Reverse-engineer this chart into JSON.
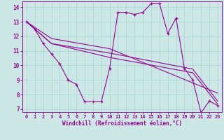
{
  "xlabel": "Windchill (Refroidissement éolien,°C)",
  "background_color": "#cce8e4",
  "line_color": "#990099",
  "grid_color": "#aad8d4",
  "xlim": [
    -0.5,
    23.5
  ],
  "ylim": [
    6.8,
    14.4
  ],
  "yticks": [
    7,
    8,
    9,
    10,
    11,
    12,
    13,
    14
  ],
  "xticks": [
    0,
    1,
    2,
    3,
    4,
    5,
    6,
    7,
    8,
    9,
    10,
    11,
    12,
    13,
    14,
    15,
    16,
    17,
    18,
    19,
    20,
    21,
    22,
    23
  ],
  "series1": [
    [
      0,
      13.0
    ],
    [
      1,
      12.5
    ],
    [
      2,
      11.5
    ],
    [
      3,
      10.8
    ],
    [
      4,
      10.1
    ],
    [
      5,
      9.0
    ],
    [
      6,
      8.7
    ],
    [
      7,
      7.5
    ],
    [
      8,
      7.5
    ],
    [
      9,
      7.5
    ],
    [
      10,
      9.8
    ],
    [
      11,
      13.65
    ],
    [
      12,
      13.65
    ],
    [
      13,
      13.5
    ],
    [
      14,
      13.65
    ],
    [
      15,
      14.25
    ],
    [
      16,
      14.25
    ],
    [
      17,
      12.2
    ],
    [
      18,
      13.25
    ],
    [
      19,
      9.8
    ],
    [
      20,
      9.0
    ],
    [
      21,
      6.75
    ],
    [
      22,
      7.55
    ],
    [
      23,
      7.25
    ]
  ],
  "line2": [
    [
      0,
      13.0
    ],
    [
      3,
      11.5
    ],
    [
      10,
      10.55
    ],
    [
      20,
      9.5
    ],
    [
      23,
      7.35
    ]
  ],
  "line3": [
    [
      0,
      13.0
    ],
    [
      3,
      11.5
    ],
    [
      10,
      10.85
    ],
    [
      20,
      9.75
    ],
    [
      23,
      7.55
    ]
  ],
  "line4": [
    [
      0,
      13.0
    ],
    [
      3,
      11.85
    ],
    [
      10,
      11.15
    ],
    [
      23,
      8.1
    ]
  ]
}
